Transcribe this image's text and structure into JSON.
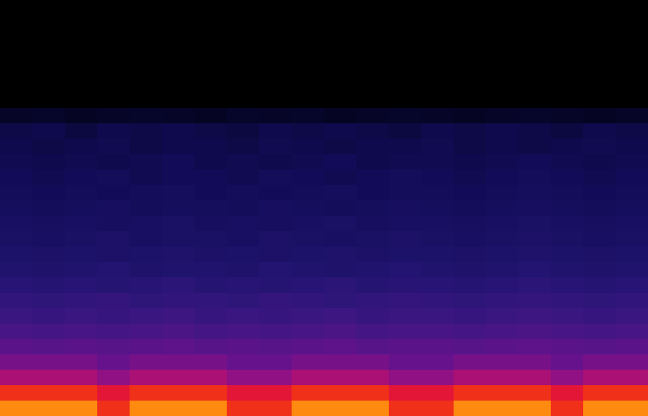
{
  "chart_data": {
    "type": "heatmap",
    "tick_labels": false,
    "zlim": [
      0,
      100
    ],
    "cells": [
      [
        0,
        0,
        0,
        0,
        0,
        0,
        0,
        0,
        0,
        0,
        0,
        0,
        0,
        0,
        0,
        0,
        0,
        0,
        0,
        0
      ],
      [
        0,
        0,
        0,
        0,
        0,
        0,
        0,
        0,
        0,
        0,
        0,
        0,
        0,
        0,
        0,
        0,
        0,
        0,
        0,
        0
      ],
      [
        0,
        0,
        0,
        0,
        0,
        0,
        0,
        0,
        0,
        0,
        0,
        0,
        0,
        0,
        0,
        0,
        0,
        0,
        0,
        0
      ],
      [
        0,
        0,
        0,
        0,
        0,
        0,
        0,
        0,
        0,
        0,
        0,
        0,
        0,
        0,
        0,
        0,
        0,
        0,
        0,
        0
      ],
      [
        0,
        0,
        0,
        0,
        0,
        0,
        0,
        0,
        0,
        0,
        0,
        0,
        0,
        0,
        0,
        0,
        0,
        0,
        0,
        0
      ],
      [
        0,
        0,
        0,
        0,
        0,
        0,
        0,
        0,
        0,
        0,
        0,
        0,
        0,
        0,
        0,
        0,
        0,
        0,
        0,
        0
      ],
      [
        0,
        0,
        0,
        0,
        0,
        0,
        0,
        0,
        0,
        0,
        0,
        0,
        0,
        0,
        0,
        0,
        0,
        0,
        0,
        0
      ],
      [
        11,
        12,
        10,
        11,
        12,
        11,
        10,
        12,
        11,
        12,
        10,
        11,
        12,
        11,
        10,
        11,
        12,
        11,
        10,
        11
      ],
      [
        17,
        18,
        16,
        18,
        17,
        18,
        17,
        16,
        18,
        17,
        18,
        17,
        16,
        18,
        17,
        18,
        17,
        16,
        18,
        17
      ],
      [
        18,
        17,
        18,
        19,
        17,
        18,
        18,
        17,
        19,
        18,
        17,
        18,
        18,
        19,
        17,
        18,
        17,
        18,
        19,
        18
      ],
      [
        19,
        18,
        19,
        18,
        19,
        20,
        18,
        19,
        18,
        19,
        20,
        18,
        19,
        19,
        18,
        19,
        20,
        19,
        18,
        19
      ],
      [
        20,
        19,
        20,
        21,
        19,
        20,
        20,
        19,
        21,
        20,
        19,
        20,
        21,
        20,
        19,
        20,
        21,
        20,
        19,
        20
      ],
      [
        21,
        20,
        21,
        20,
        21,
        22,
        20,
        21,
        20,
        21,
        22,
        20,
        21,
        21,
        20,
        21,
        22,
        21,
        20,
        21
      ],
      [
        22,
        21,
        22,
        23,
        21,
        22,
        22,
        21,
        23,
        22,
        21,
        22,
        23,
        22,
        21,
        22,
        23,
        22,
        21,
        22
      ],
      [
        24,
        23,
        24,
        23,
        24,
        25,
        23,
        24,
        23,
        24,
        25,
        23,
        24,
        24,
        23,
        24,
        25,
        24,
        23,
        24
      ],
      [
        25,
        24,
        25,
        26,
        24,
        25,
        25,
        24,
        26,
        25,
        24,
        25,
        26,
        25,
        24,
        25,
        26,
        25,
        24,
        25
      ],
      [
        27,
        26,
        27,
        26,
        27,
        28,
        26,
        27,
        26,
        27,
        28,
        26,
        27,
        27,
        26,
        27,
        28,
        27,
        26,
        27
      ],
      [
        29,
        28,
        29,
        30,
        28,
        29,
        29,
        28,
        30,
        29,
        28,
        29,
        30,
        29,
        28,
        29,
        30,
        29,
        28,
        29
      ],
      [
        32,
        31,
        32,
        31,
        32,
        33,
        31,
        32,
        31,
        32,
        33,
        31,
        32,
        32,
        31,
        32,
        33,
        32,
        31,
        32
      ],
      [
        35,
        34,
        35,
        36,
        34,
        35,
        35,
        34,
        36,
        35,
        34,
        35,
        36,
        35,
        34,
        35,
        36,
        35,
        34,
        35
      ],
      [
        38,
        37,
        38,
        37,
        38,
        39,
        37,
        38,
        37,
        38,
        39,
        37,
        38,
        38,
        37,
        38,
        39,
        38,
        37,
        38
      ],
      [
        42,
        41,
        42,
        41,
        42,
        43,
        41,
        42,
        41,
        42,
        43,
        41,
        42,
        42,
        41,
        42,
        43,
        42,
        41,
        42
      ],
      [
        47,
        46,
        47,
        46,
        47,
        48,
        46,
        47,
        46,
        47,
        48,
        46,
        47,
        47,
        46,
        47,
        48,
        47,
        46,
        47
      ],
      [
        53,
        53,
        53,
        50,
        53,
        53,
        53,
        50,
        50,
        53,
        53,
        53,
        50,
        50,
        53,
        53,
        53,
        50,
        53,
        53
      ],
      [
        62,
        62,
        62,
        57,
        62,
        62,
        62,
        57,
        57,
        62,
        62,
        62,
        57,
        57,
        62,
        62,
        62,
        57,
        62,
        62
      ],
      [
        82,
        82,
        82,
        74,
        82,
        82,
        82,
        74,
        74,
        82,
        82,
        82,
        74,
        74,
        82,
        82,
        82,
        74,
        82,
        82
      ],
      [
        90,
        90,
        90,
        82,
        90,
        90,
        90,
        82,
        82,
        90,
        90,
        90,
        82,
        82,
        90,
        90,
        90,
        82,
        90,
        90
      ]
    ]
  }
}
